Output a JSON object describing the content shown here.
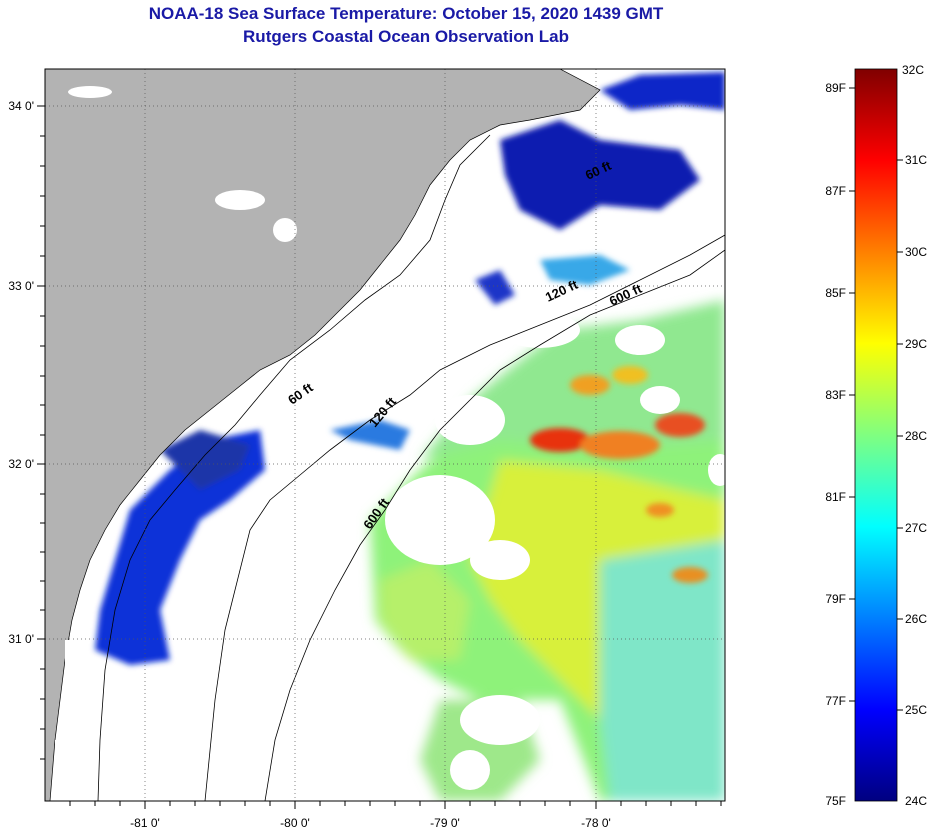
{
  "title": {
    "line1": "NOAA-18 Sea Surface Temperature:  October 15, 2020 1439 GMT",
    "line2": "Rutgers Coastal Ocean Observation Lab"
  },
  "map": {
    "lon_ticks": [
      "-81 0'",
      "-80 0'",
      "-79 0'",
      "-78 0'"
    ],
    "lat_ticks": [
      "34 0'",
      "33 0'",
      "32 0'",
      "31 0'"
    ],
    "contour_labels": [
      "60 ft",
      "120 ft",
      "600 ft",
      "60 ft",
      "120 ft",
      "600 ft"
    ],
    "colors": {
      "land": "#b3b3b3",
      "cloud": "#ffffff",
      "cold": "#1030d8",
      "warm": "#f0e030",
      "hot": "#e03010"
    }
  },
  "colorbar": {
    "celsius": [
      "32C",
      "31C",
      "30C",
      "29C",
      "28C",
      "27C",
      "26C",
      "25C",
      "24C"
    ],
    "fahrenheit": [
      "89F",
      "87F",
      "85F",
      "83F",
      "81F",
      "79F",
      "77F",
      "75F"
    ],
    "stops": [
      "#800000",
      "#ff0000",
      "#ff8000",
      "#ffff00",
      "#80ff80",
      "#00ffff",
      "#0080ff",
      "#0000ff",
      "#000080"
    ]
  }
}
